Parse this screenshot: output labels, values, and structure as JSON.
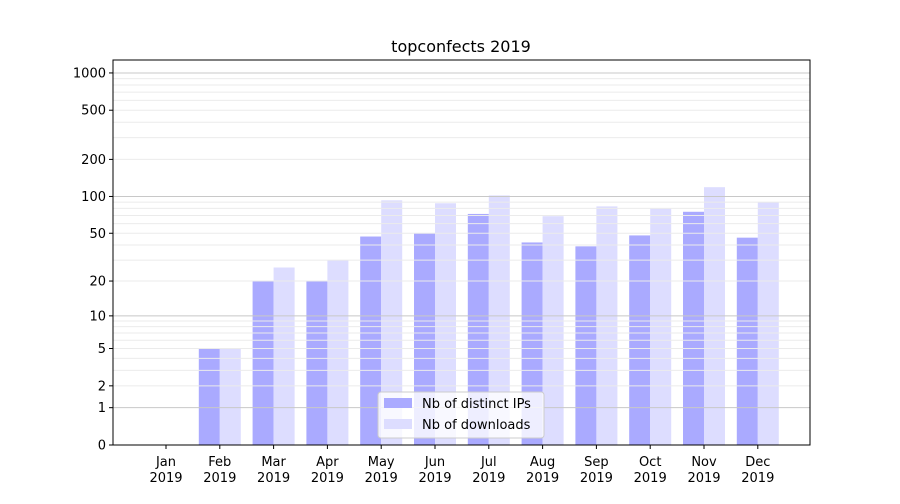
{
  "chart_data": {
    "type": "bar",
    "title": "topconfects 2019",
    "xlabel": "",
    "ylabel": "",
    "yscale": "symlog (log10(1+y))",
    "ylim": [
      0,
      1300
    ],
    "yticks": [
      0,
      1,
      2,
      5,
      10,
      20,
      50,
      100,
      200,
      500,
      1000
    ],
    "grid": true,
    "legend_position": "bottom-center",
    "categories": [
      "Jan\n2019",
      "Feb\n2019",
      "Mar\n2019",
      "Apr\n2019",
      "May\n2019",
      "Jun\n2019",
      "Jul\n2019",
      "Aug\n2019",
      "Sep\n2019",
      "Oct\n2019",
      "Nov\n2019",
      "Dec\n2019"
    ],
    "series": [
      {
        "name": "Nb of distinct IPs",
        "color": "#aaaaff",
        "values": [
          0,
          5,
          20,
          20,
          47,
          50,
          72,
          42,
          39,
          48,
          75,
          46
        ]
      },
      {
        "name": "Nb of downloads",
        "color": "#ddddff",
        "values": [
          0,
          5,
          26,
          30,
          93,
          88,
          102,
          69,
          83,
          80,
          119,
          90
        ]
      }
    ]
  }
}
